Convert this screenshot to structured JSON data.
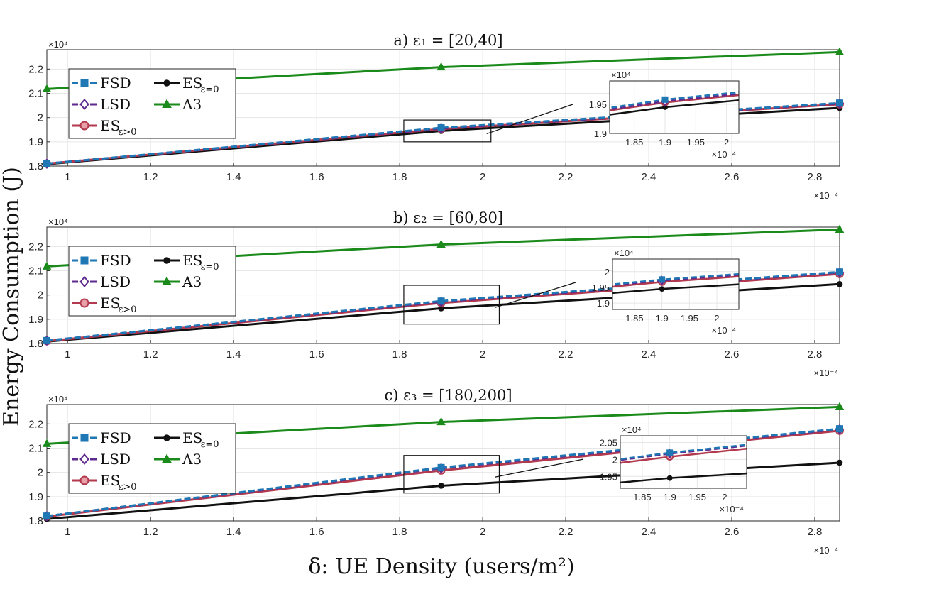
{
  "figure": {
    "ylabel": "Energy Consumption (J)",
    "xlabel": "δ: UE Density (users/m²)",
    "x_exponent": "×10⁻⁴",
    "y_exponent": "×10⁴"
  },
  "legend_order": [
    "FSD",
    "ES_{ε=0}",
    "LSD",
    "A3",
    "ES_{ε>0}"
  ],
  "series_styles": {
    "FSD": {
      "label": "FSD",
      "color": "#1f77b4",
      "marker": "square",
      "dash": true
    },
    "LSD": {
      "label": "LSD",
      "color": "#5e2a8f",
      "marker": "diamond",
      "dash": true
    },
    "ES_{ε>0}": {
      "label": "ES",
      "sub": "ε>0",
      "color": "#b3394e",
      "marker": "circle",
      "dash": false
    },
    "ES_{ε=0}": {
      "label": "ES",
      "sub": "ε=0",
      "color": "#111111",
      "marker": "dot",
      "dash": false
    },
    "A3": {
      "label": "A3",
      "color": "#1a8a1a",
      "marker": "triangle",
      "dash": false
    }
  },
  "chart_data": [
    {
      "type": "line",
      "title": "a) ε₁ = [20,40]",
      "x": [
        0.95,
        1.9,
        2.86
      ],
      "xlim": [
        0.95,
        2.86
      ],
      "ylim": [
        1.8,
        2.28
      ],
      "xticks": [
        1,
        1.2,
        1.4,
        1.6,
        1.8,
        2,
        2.2,
        2.4,
        2.6,
        2.8
      ],
      "xtick_labels": [
        "1",
        "1.2",
        "1.4",
        "1.6",
        "1.8",
        "2",
        "2.2",
        "2.4",
        "2.6",
        "2.8"
      ],
      "yticks": [
        1.8,
        1.9,
        2.0,
        2.1,
        2.2
      ],
      "ytick_labels": [
        "1.8",
        "1.9",
        "2",
        "2.1",
        "2.2"
      ],
      "series": [
        {
          "name": "A3",
          "values": [
            2.118,
            2.208,
            2.27
          ]
        },
        {
          "name": "FSD",
          "values": [
            1.81,
            1.958,
            2.06
          ]
        },
        {
          "name": "LSD",
          "values": [
            1.81,
            1.955,
            2.058
          ]
        },
        {
          "name": "ES_{ε>0}",
          "values": [
            1.81,
            1.953,
            2.055
          ]
        },
        {
          "name": "ES_{ε=0}",
          "values": [
            1.808,
            1.945,
            2.04
          ]
        }
      ],
      "zoom_box": {
        "xlim": [
          1.81,
          2.02
        ],
        "ylim": [
          1.9,
          1.99
        ]
      },
      "inset": {
        "xlim": [
          1.81,
          2.02
        ],
        "ylim": [
          1.9,
          1.99
        ],
        "xticks": [
          1.85,
          1.9,
          1.95,
          2.0
        ],
        "xtick_labels": [
          "1.85",
          "1.9",
          "1.95",
          "2"
        ],
        "yticks": [
          1.9,
          1.95
        ],
        "ytick_labels": [
          "1.9",
          "1.95"
        ],
        "x_exponent": "×10⁻⁴",
        "y_exponent": "×10⁴"
      }
    },
    {
      "type": "line",
      "title": "b) ε₂ = [60,80]",
      "x": [
        0.95,
        1.9,
        2.86
      ],
      "xlim": [
        0.95,
        2.86
      ],
      "ylim": [
        1.8,
        2.28
      ],
      "xticks": [
        1,
        1.2,
        1.4,
        1.6,
        1.8,
        2,
        2.2,
        2.4,
        2.6,
        2.8
      ],
      "xtick_labels": [
        "1",
        "1.2",
        "1.4",
        "1.6",
        "1.8",
        "2",
        "2.2",
        "2.4",
        "2.6",
        "2.8"
      ],
      "yticks": [
        1.8,
        1.9,
        2.0,
        2.1,
        2.2
      ],
      "ytick_labels": [
        "1.8",
        "1.9",
        "2",
        "2.1",
        "2.2"
      ],
      "series": [
        {
          "name": "A3",
          "values": [
            2.118,
            2.208,
            2.27
          ]
        },
        {
          "name": "FSD",
          "values": [
            1.812,
            1.975,
            2.095
          ]
        },
        {
          "name": "LSD",
          "values": [
            1.812,
            1.972,
            2.093
          ]
        },
        {
          "name": "ES_{ε>0}",
          "values": [
            1.81,
            1.967,
            2.087
          ]
        },
        {
          "name": "ES_{ε=0}",
          "values": [
            1.808,
            1.945,
            2.045
          ]
        }
      ],
      "zoom_box": {
        "xlim": [
          1.81,
          2.04
        ],
        "ylim": [
          1.88,
          2.04
        ]
      },
      "inset": {
        "xlim": [
          1.81,
          2.04
        ],
        "ylim": [
          1.88,
          2.04
        ],
        "xticks": [
          1.85,
          1.9,
          1.95,
          2.0
        ],
        "xtick_labels": [
          "1.85",
          "1.9",
          "1.95",
          "2"
        ],
        "yticks": [
          1.9,
          1.95,
          2.0
        ],
        "ytick_labels": [
          "1.9",
          "1.95",
          "2"
        ],
        "x_exponent": "×10⁻⁴",
        "y_exponent": "×10⁴"
      }
    },
    {
      "type": "line",
      "title": "c) ε₃ = [180,200]",
      "x": [
        0.95,
        1.9,
        2.86
      ],
      "xlim": [
        0.95,
        2.86
      ],
      "ylim": [
        1.8,
        2.28
      ],
      "xticks": [
        1,
        1.2,
        1.4,
        1.6,
        1.8,
        2,
        2.2,
        2.4,
        2.6,
        2.8
      ],
      "xtick_labels": [
        "1",
        "1.2",
        "1.4",
        "1.6",
        "1.8",
        "2",
        "2.2",
        "2.4",
        "2.6",
        "2.8"
      ],
      "yticks": [
        1.8,
        1.9,
        2.0,
        2.1,
        2.2
      ],
      "ytick_labels": [
        "1.8",
        "1.9",
        "2",
        "2.1",
        "2.2"
      ],
      "series": [
        {
          "name": "A3",
          "values": [
            2.118,
            2.208,
            2.27
          ]
        },
        {
          "name": "FSD",
          "values": [
            1.82,
            2.02,
            2.18
          ]
        },
        {
          "name": "LSD",
          "values": [
            1.82,
            2.017,
            2.178
          ]
        },
        {
          "name": "ES_{ε>0}",
          "values": [
            1.818,
            2.008,
            2.172
          ]
        },
        {
          "name": "ES_{ε=0}",
          "values": [
            1.808,
            1.945,
            2.04
          ]
        }
      ],
      "zoom_box": {
        "xlim": [
          1.81,
          2.04
        ],
        "ylim": [
          1.915,
          2.07
        ]
      },
      "inset": {
        "xlim": [
          1.81,
          2.04
        ],
        "ylim": [
          1.915,
          2.07
        ],
        "xticks": [
          1.85,
          1.9,
          1.95,
          2.0
        ],
        "xtick_labels": [
          "1.85",
          "1.9",
          "1.95",
          "2"
        ],
        "yticks": [
          1.95,
          2.0,
          2.05
        ],
        "ytick_labels": [
          "1.95",
          "2",
          "2.05"
        ],
        "x_exponent": "×10⁻⁴",
        "y_exponent": "×10⁴"
      }
    }
  ]
}
